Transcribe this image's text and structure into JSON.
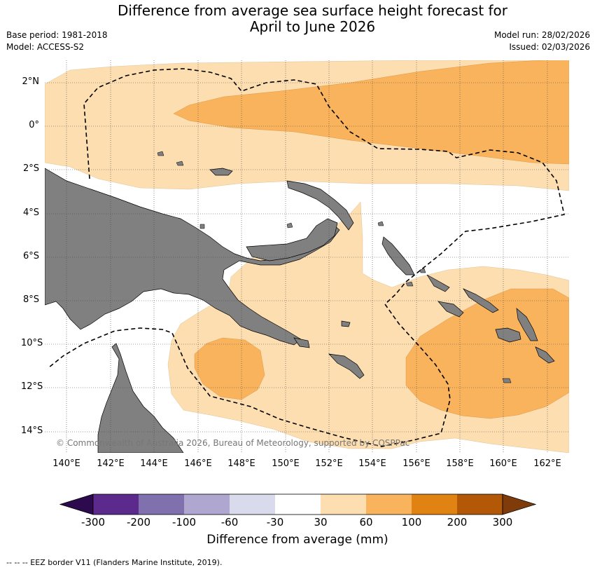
{
  "title": {
    "line1": "Difference from average sea surface height forecast for",
    "line2": "April to June 2026"
  },
  "meta": {
    "base_period": "Base period: 1981-2018",
    "model": "Model: ACCESS-S2",
    "model_run": "Model run: 28/02/2026",
    "issued": "Issued: 02/03/2026"
  },
  "map": {
    "lat_labels": [
      "2°N",
      "0°",
      "2°S",
      "4°S",
      "6°S",
      "8°S",
      "10°S",
      "12°S",
      "14°S"
    ],
    "lon_labels": [
      "140°E",
      "142°E",
      "144°E",
      "146°E",
      "148°E",
      "150°E",
      "152°E",
      "154°E",
      "156°E",
      "158°E",
      "160°E",
      "162°E"
    ],
    "copyright": "© Commonwealth of Australia 2026, Bureau of Meteorology, supported by COSPPac"
  },
  "colorbar": {
    "tick_labels": [
      "-300",
      "-200",
      "-100",
      "-60",
      "-30",
      "30",
      "60",
      "100",
      "200",
      "300"
    ],
    "colors": [
      "#5b2a8c",
      "#8070ae",
      "#b0a7d1",
      "#d9dbec",
      "#ffffff",
      "#fddeb1",
      "#f9b35d",
      "#e08312",
      "#b25807"
    ],
    "min_arrow_color": "#2d0a4e",
    "max_arrow_color": "#7f3c0a",
    "label": "Difference from average (mm)"
  },
  "footnote": "--  --  -- EEZ border V11 (Flanders Marine Institute, 2019)."
}
